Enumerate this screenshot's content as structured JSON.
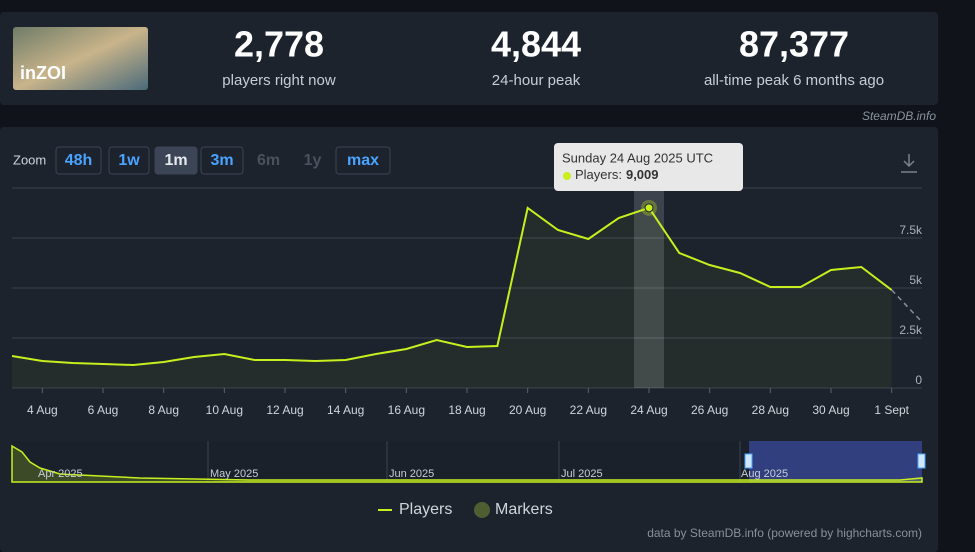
{
  "header": {
    "game_logo": "inZOI",
    "stats": [
      {
        "value": "2,778",
        "label": "players right now"
      },
      {
        "value": "4,844",
        "label": "24-hour peak"
      },
      {
        "value": "87,377",
        "label": "all-time peak 6 months ago"
      }
    ],
    "source": "SteamDB.info"
  },
  "zoom": {
    "label": "Zoom",
    "buttons": [
      "48h",
      "1w",
      "1m",
      "3m",
      "6m",
      "1y",
      "max"
    ]
  },
  "chart_data": {
    "type": "line",
    "categories": [
      null,
      "4 Aug",
      null,
      "6 Aug",
      null,
      "8 Aug",
      null,
      "10 Aug",
      null,
      "12 Aug",
      null,
      "14 Aug",
      null,
      "16 Aug",
      null,
      "18 Aug",
      null,
      "20 Aug",
      null,
      "22 Aug",
      null,
      "24 Aug",
      null,
      "26 Aug",
      null,
      "28 Aug",
      null,
      "30 Aug",
      null,
      "1 Sept",
      null
    ],
    "series": [
      {
        "name": "Players",
        "color": "#c8ee1e",
        "values": [
          1600,
          1350,
          1250,
          1200,
          1150,
          1300,
          1550,
          1700,
          1400,
          1400,
          1350,
          1400,
          1700,
          1950,
          2400,
          2050,
          2100,
          9000,
          7900,
          7450,
          8500,
          9009,
          6750,
          6150,
          5750,
          5050,
          5050,
          5900,
          6050,
          4900,
          3300
        ]
      }
    ],
    "ylim": [
      0,
      10000
    ],
    "yticks": [
      0,
      {
        "value": 2500,
        "label": "2.5k"
      },
      {
        "value": 5000,
        "label": "5k"
      },
      {
        "value": 7500,
        "label": "7.5k"
      }
    ],
    "grid": true,
    "tooltip": {
      "title": "Sunday 24 Aug 2025 UTC",
      "label": "Players:",
      "value_label": "9,009"
    },
    "markers_legend": "Markers"
  },
  "navigator": {
    "labels": [
      "Apr 2025",
      "May 2025",
      "Jun 2025",
      "Jul 2025",
      "Aug 2025"
    ]
  },
  "credits": "data by SteamDB.info (powered by highcharts.com)"
}
